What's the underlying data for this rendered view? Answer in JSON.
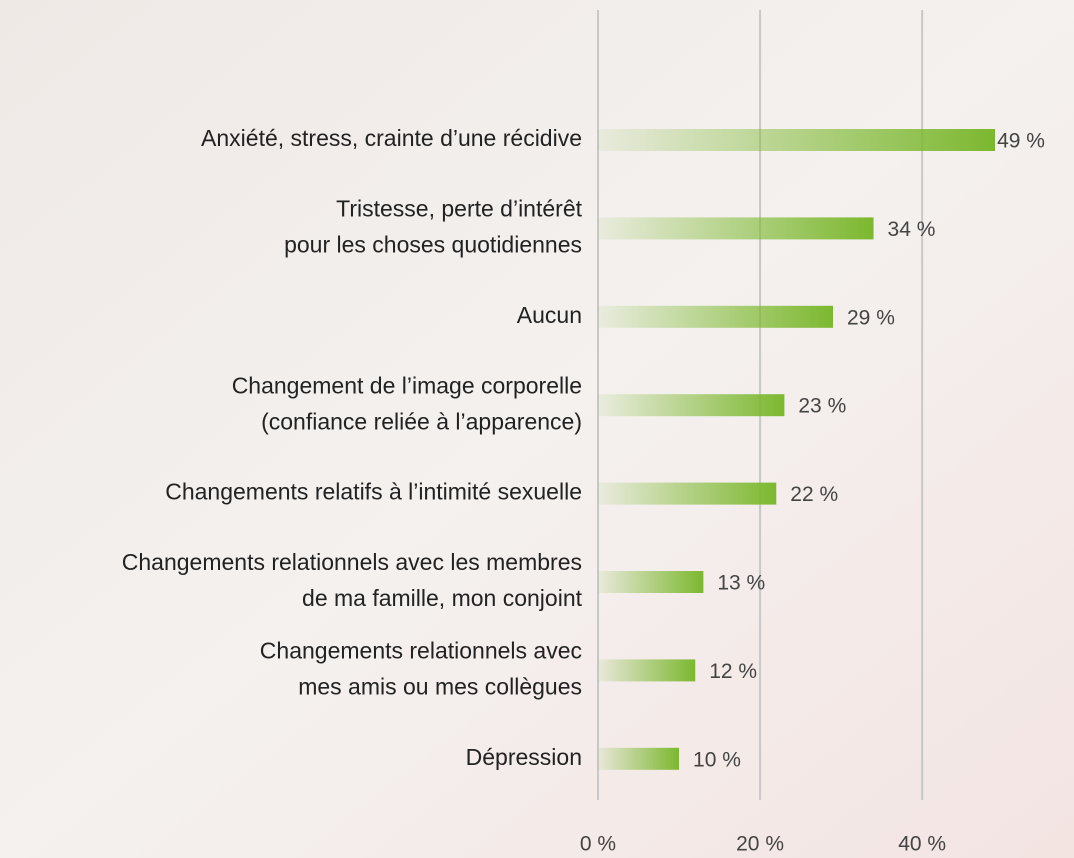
{
  "chart_data": {
    "type": "bar",
    "orientation": "horizontal",
    "categories": [
      [
        "Anxiété, stress, crainte d’une récidive"
      ],
      [
        "Tristesse, perte d’intérêt",
        "pour les choses quotidiennes"
      ],
      [
        "Aucun"
      ],
      [
        "Changement de l’image corporelle",
        "(confiance reliée à l’apparence)"
      ],
      [
        "Changements relatifs à l’intimité sexuelle"
      ],
      [
        "Changements relationnels avec les membres",
        "de ma famille, mon conjoint"
      ],
      [
        "Changements relationnels avec",
        "mes amis ou mes collègues"
      ],
      [
        "Dépression"
      ]
    ],
    "values": [
      49,
      34,
      29,
      23,
      22,
      13,
      12,
      10
    ],
    "value_labels": [
      "49 %",
      "34 %",
      "29 %",
      "23 %",
      "22 %",
      "13 %",
      "12 %",
      "10 %"
    ],
    "color": "#7cb82f",
    "xlim": [
      0,
      58
    ],
    "xticks": [
      {
        "value": 0,
        "label": "0 %"
      },
      {
        "value": 20,
        "label": "20 %"
      },
      {
        "value": 40,
        "label": "40 %"
      }
    ],
    "grid": true
  }
}
